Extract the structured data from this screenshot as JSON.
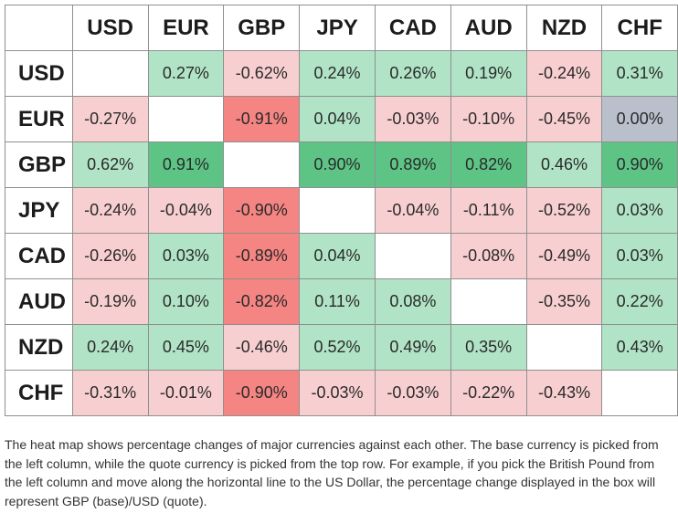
{
  "chart_data": {
    "type": "heatmap",
    "columns": [
      "USD",
      "EUR",
      "GBP",
      "JPY",
      "CAD",
      "AUD",
      "NZD",
      "CHF"
    ],
    "rows": [
      "USD",
      "EUR",
      "GBP",
      "JPY",
      "CAD",
      "AUD",
      "NZD",
      "CHF"
    ],
    "values": [
      [
        null,
        0.27,
        -0.62,
        0.24,
        0.26,
        0.19,
        -0.24,
        0.31
      ],
      [
        -0.27,
        null,
        -0.91,
        0.04,
        -0.03,
        -0.1,
        -0.45,
        0.0
      ],
      [
        0.62,
        0.91,
        null,
        0.9,
        0.89,
        0.82,
        0.46,
        0.9
      ],
      [
        -0.24,
        -0.04,
        -0.9,
        null,
        -0.04,
        -0.11,
        -0.52,
        0.03
      ],
      [
        -0.26,
        0.03,
        -0.89,
        0.04,
        null,
        -0.08,
        -0.49,
        0.03
      ],
      [
        -0.19,
        0.1,
        -0.82,
        0.11,
        0.08,
        null,
        -0.35,
        0.22
      ],
      [
        0.24,
        0.45,
        -0.46,
        0.52,
        0.49,
        0.35,
        null,
        0.43
      ],
      [
        -0.31,
        -0.01,
        -0.9,
        -0.03,
        -0.03,
        -0.22,
        -0.43,
        null
      ]
    ],
    "unit": "%",
    "colors": {
      "positive_light": "#b1e4c6",
      "positive_strong": "#5ec486",
      "negative_light": "#f8cfd0",
      "negative_strong": "#f58582",
      "zero": "#b9c0cc",
      "empty": "#ffffff"
    }
  },
  "caption": "The heat map shows percentage changes of major currencies against each other. The base currency is picked from the left column, while the quote currency is picked from the top row. For example, if you pick the British Pound from the left column and move along the horizontal line to the US Dollar, the percentage change displayed in the box will represent GBP (base)/USD (quote)."
}
